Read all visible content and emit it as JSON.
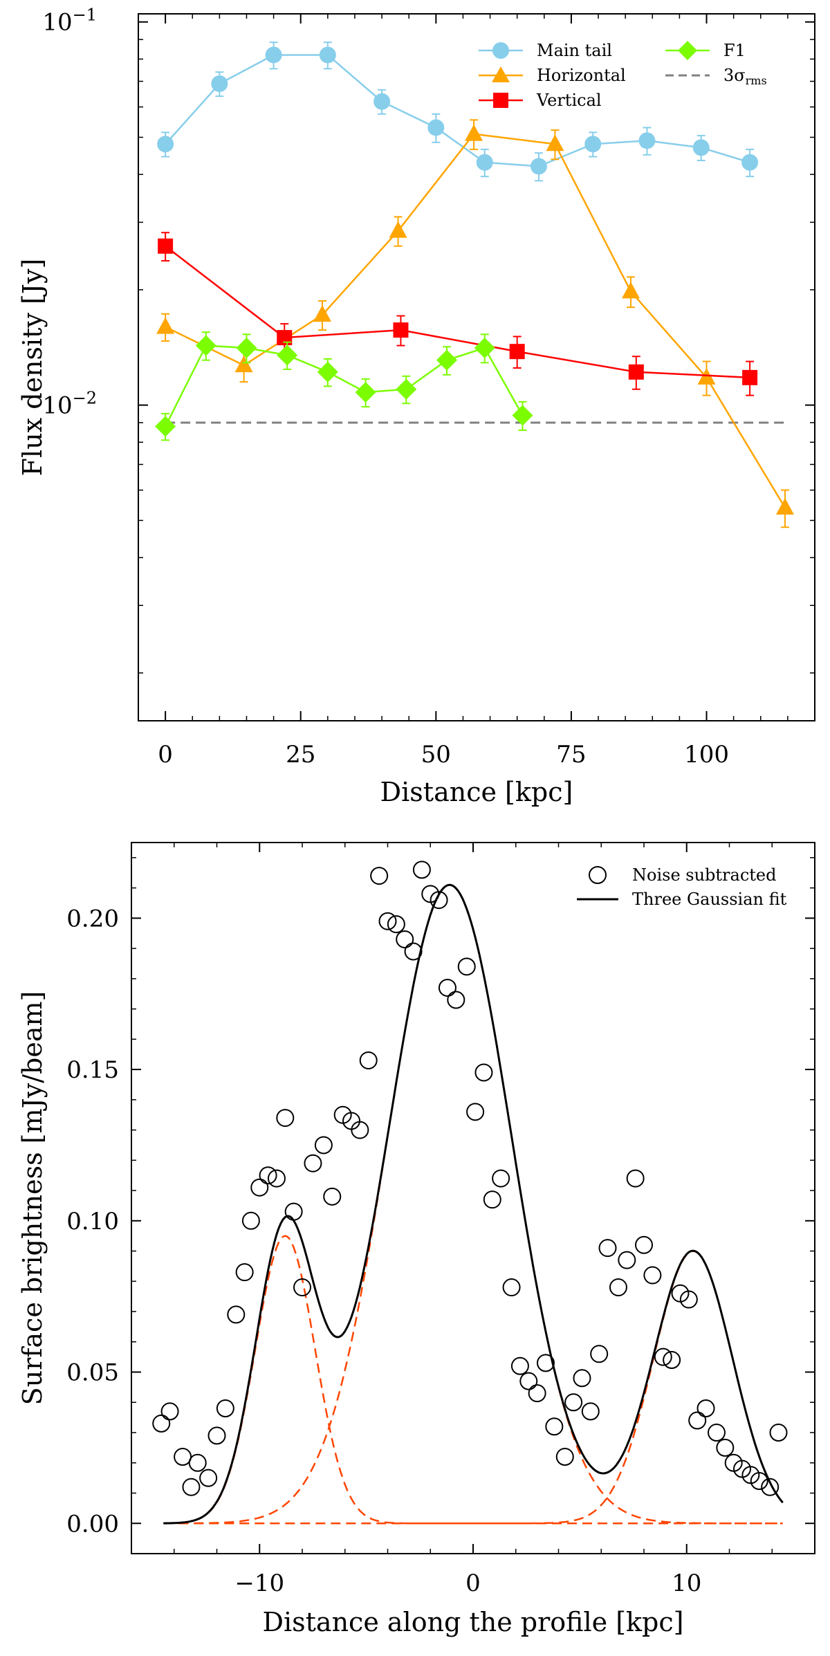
{
  "chart_data": [
    {
      "type": "line",
      "yscale": "log",
      "xlabel": "Distance [kpc]",
      "ylabel": "Flux density [Jy]",
      "xlim": [
        -5,
        120
      ],
      "ylim": [
        0.0015,
        0.105
      ],
      "xticks": [
        0,
        25,
        50,
        75,
        100
      ],
      "xtick_labels": [
        "0",
        "25",
        "50",
        "75",
        "100"
      ],
      "yticks": [
        0.01,
        0.1
      ],
      "ytick_base": "10",
      "ytick_exponents": [
        "−2",
        "−1"
      ],
      "legend": {
        "placement": "top-right",
        "ncol": 2
      },
      "series": [
        {
          "name": "Main tail",
          "color": "#87ceeb",
          "marker": "circle",
          "x": [
            0,
            10,
            20,
            30,
            40,
            50,
            59,
            69,
            79,
            89,
            99,
            108
          ],
          "y": [
            0.048,
            0.069,
            0.082,
            0.082,
            0.062,
            0.053,
            0.043,
            0.042,
            0.048,
            0.049,
            0.047,
            0.043
          ],
          "err": [
            0.0035,
            0.005,
            0.0065,
            0.0065,
            0.0045,
            0.0045,
            0.0035,
            0.0035,
            0.0035,
            0.004,
            0.0035,
            0.0035
          ]
        },
        {
          "name": "Horizontal",
          "color": "#ffa500",
          "marker": "triangle",
          "x": [
            0,
            14.5,
            29,
            43,
            57,
            72,
            86,
            100,
            114.5
          ],
          "y": [
            0.016,
            0.0127,
            0.0172,
            0.0285,
            0.051,
            0.048,
            0.0198,
            0.0118,
            0.0054
          ],
          "err": [
            0.0013,
            0.0012,
            0.0015,
            0.0025,
            0.0045,
            0.0042,
            0.0018,
            0.0012,
            0.0006
          ]
        },
        {
          "name": "Vertical",
          "color": "#ff0000",
          "marker": "square",
          "x": [
            0,
            22,
            43.5,
            65,
            87,
            108
          ],
          "y": [
            0.026,
            0.015,
            0.0157,
            0.0138,
            0.0122,
            0.0118
          ],
          "err": [
            0.0022,
            0.0013,
            0.0014,
            0.0013,
            0.0012,
            0.0012
          ]
        },
        {
          "name": "F1",
          "color": "#7cfc00",
          "marker": "diamond",
          "x": [
            0,
            7.5,
            15,
            22.5,
            30,
            37,
            44.5,
            52,
            59,
            66
          ],
          "y": [
            0.0088,
            0.0143,
            0.0141,
            0.0135,
            0.0122,
            0.0108,
            0.011,
            0.0131,
            0.0141,
            0.0094
          ],
          "err": [
            0.0007,
            0.0012,
            0.0012,
            0.0011,
            0.001,
            0.0009,
            0.0009,
            0.0011,
            0.0012,
            0.0008
          ]
        }
      ],
      "reference_line": {
        "name": "3σ_rms",
        "symbol": "3σ",
        "subscript": "rms",
        "y": 0.009,
        "x_range": [
          0,
          114.5
        ],
        "color": "#808080",
        "style": "dashed"
      }
    },
    {
      "type": "scatter",
      "xlabel": "Distance along the profile [kpc]",
      "ylabel": "Surface brightness [mJy/beam]",
      "xlim": [
        -16,
        16
      ],
      "ylim": [
        -0.01,
        0.225
      ],
      "xticks": [
        -10,
        0,
        10
      ],
      "xtick_labels": [
        "−10",
        "0",
        "10"
      ],
      "yticks": [
        0,
        0.05,
        0.1,
        0.15,
        0.2
      ],
      "ytick_labels": [
        "0.00",
        "0.05",
        "0.10",
        "0.15",
        "0.20"
      ],
      "legend": {
        "placement": "top-right"
      },
      "legend_labels": {
        "points": "Noise subtracted",
        "fit": "Three Gaussian fit"
      },
      "points": {
        "x": [
          -14.6,
          -14.2,
          -13.6,
          -13.2,
          -12.9,
          -12.4,
          -12.0,
          -11.6,
          -11.1,
          -10.7,
          -10.4,
          -10.0,
          -9.6,
          -9.2,
          -8.8,
          -8.4,
          -8.0,
          -7.5,
          -7.0,
          -6.6,
          -6.1,
          -5.7,
          -5.3,
          -4.9,
          -4.4,
          -4.0,
          -3.6,
          -3.2,
          -2.8,
          -2.4,
          -2.0,
          -1.6,
          -1.2,
          -0.8,
          -0.3,
          0.1,
          0.5,
          0.9,
          1.3,
          1.8,
          2.2,
          2.6,
          3.0,
          3.4,
          3.8,
          4.3,
          4.7,
          5.1,
          5.5,
          5.9,
          6.3,
          6.8,
          7.2,
          7.6,
          8.0,
          8.4,
          8.9,
          9.3,
          9.7,
          10.1,
          10.5,
          10.9,
          11.4,
          11.8,
          12.2,
          12.6,
          13.0,
          13.4,
          13.9,
          14.3
        ],
        "y": [
          0.033,
          0.037,
          0.022,
          0.012,
          0.02,
          0.015,
          0.029,
          0.038,
          0.069,
          0.083,
          0.1,
          0.111,
          0.115,
          0.114,
          0.134,
          0.103,
          0.078,
          0.119,
          0.125,
          0.108,
          0.135,
          0.133,
          0.13,
          0.153,
          0.214,
          0.199,
          0.198,
          0.193,
          0.189,
          0.216,
          0.208,
          0.206,
          0.177,
          0.173,
          0.184,
          0.136,
          0.149,
          0.107,
          0.114,
          0.078,
          0.052,
          0.047,
          0.043,
          0.053,
          0.032,
          0.022,
          0.04,
          0.048,
          0.037,
          0.056,
          0.091,
          0.078,
          0.087,
          0.114,
          0.092,
          0.082,
          0.055,
          0.054,
          0.076,
          0.074,
          0.034,
          0.038,
          0.03,
          0.025,
          0.02,
          0.018,
          0.016,
          0.014,
          0.012,
          0.03
        ]
      },
      "fit_components": [
        {
          "amplitude": 0.095,
          "center": -8.8,
          "sigma": 1.4
        },
        {
          "amplitude": 0.211,
          "center": -1.1,
          "sigma": 2.9
        },
        {
          "amplitude": 0.09,
          "center": 10.3,
          "sigma": 1.85
        }
      ],
      "fit_range": [
        -14.5,
        14.5
      ],
      "fit_color": "#000000",
      "component_color": "#ff4500"
    }
  ]
}
